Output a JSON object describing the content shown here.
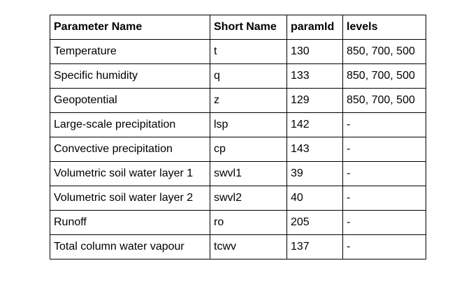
{
  "table": {
    "headers": [
      "Parameter Name",
      "Short Name",
      "paramId",
      "levels"
    ],
    "rows": [
      [
        "Temperature",
        "t",
        "130",
        "850, 700, 500"
      ],
      [
        "Specific humidity",
        "q",
        "133",
        "850, 700, 500"
      ],
      [
        "Geopotential",
        "z",
        "129",
        "850, 700, 500"
      ],
      [
        "Large-scale precipitation",
        "lsp",
        "142",
        "-"
      ],
      [
        "Convective precipitation",
        "cp",
        "143",
        "-"
      ],
      [
        "Volumetric soil water layer 1",
        "swvl1",
        "39",
        "-"
      ],
      [
        "Volumetric soil water layer 2",
        "swvl2",
        "40",
        "-"
      ],
      [
        "Runoff",
        "ro",
        "205",
        "-"
      ],
      [
        "Total column water vapour",
        "tcwv",
        "137",
        "-"
      ]
    ]
  }
}
